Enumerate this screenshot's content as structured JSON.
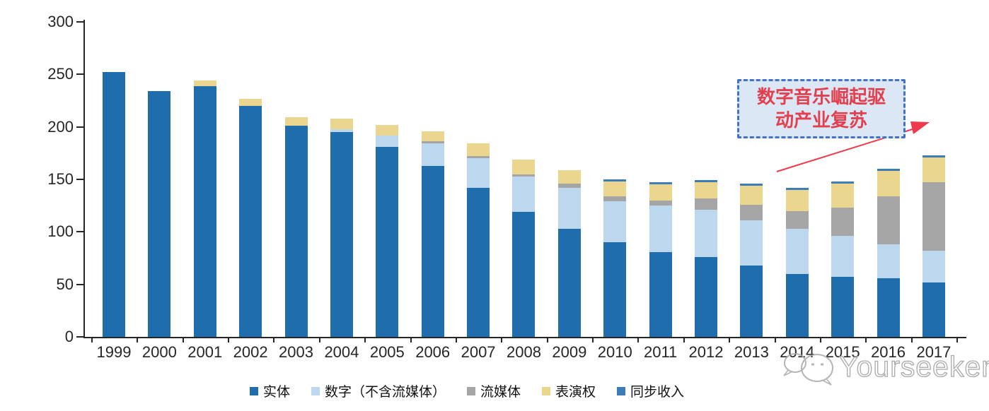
{
  "chart_data": {
    "type": "bar",
    "stacked": true,
    "categories": [
      "1999",
      "2000",
      "2001",
      "2002",
      "2003",
      "2004",
      "2005",
      "2006",
      "2007",
      "2008",
      "2009",
      "2010",
      "2011",
      "2012",
      "2013",
      "2014",
      "2015",
      "2016",
      "2017"
    ],
    "series": [
      {
        "name": "实体",
        "color": "#1F6DAD",
        "values": [
          252,
          234,
          239,
          220,
          201,
          195,
          181,
          163,
          142,
          119,
          103,
          90,
          81,
          76,
          68,
          60,
          57,
          56,
          52
        ]
      },
      {
        "name": "数字（不含流媒体）",
        "color": "#BDD7EE",
        "values": [
          0,
          0,
          0,
          0,
          0,
          3,
          11,
          21,
          28,
          34,
          39,
          39,
          44,
          45,
          43,
          43,
          39,
          32,
          30
        ]
      },
      {
        "name": "流媒体",
        "color": "#A5A5A5",
        "values": [
          0,
          0,
          0,
          0,
          0,
          0,
          0,
          2,
          2,
          2,
          4,
          5,
          5,
          11,
          15,
          17,
          27,
          46,
          65
        ]
      },
      {
        "name": "表演权",
        "color": "#EAD68F",
        "values": [
          0,
          0,
          5,
          7,
          8,
          10,
          10,
          10,
          12,
          14,
          13,
          14,
          15,
          15,
          18,
          20,
          23,
          24,
          24
        ]
      },
      {
        "name": "同步收入",
        "color": "#3E7CB8",
        "values": [
          0,
          0,
          0,
          0,
          0,
          0,
          0,
          0,
          0,
          0,
          0,
          2,
          2,
          2,
          2,
          2,
          2,
          2,
          2
        ]
      }
    ],
    "ylim": [
      0,
      300
    ],
    "yticks": [
      300,
      250,
      200,
      150,
      100,
      50,
      0
    ],
    "xlabel": "",
    "ylabel": "",
    "grid": false,
    "legend_position": "bottom",
    "axis_color": "#262626"
  },
  "annotation": {
    "line1": "数字音乐崛起驱",
    "line2": "动产业复苏",
    "border_color": "#4472C4",
    "bg_color": "#DCE7F5",
    "text_color": "#E2404E",
    "arrow_color": "#EE3A4C"
  },
  "watermark": {
    "text": "Yourseeker",
    "icon": "wechat-logo-icon",
    "color": "#A9A9A9"
  }
}
